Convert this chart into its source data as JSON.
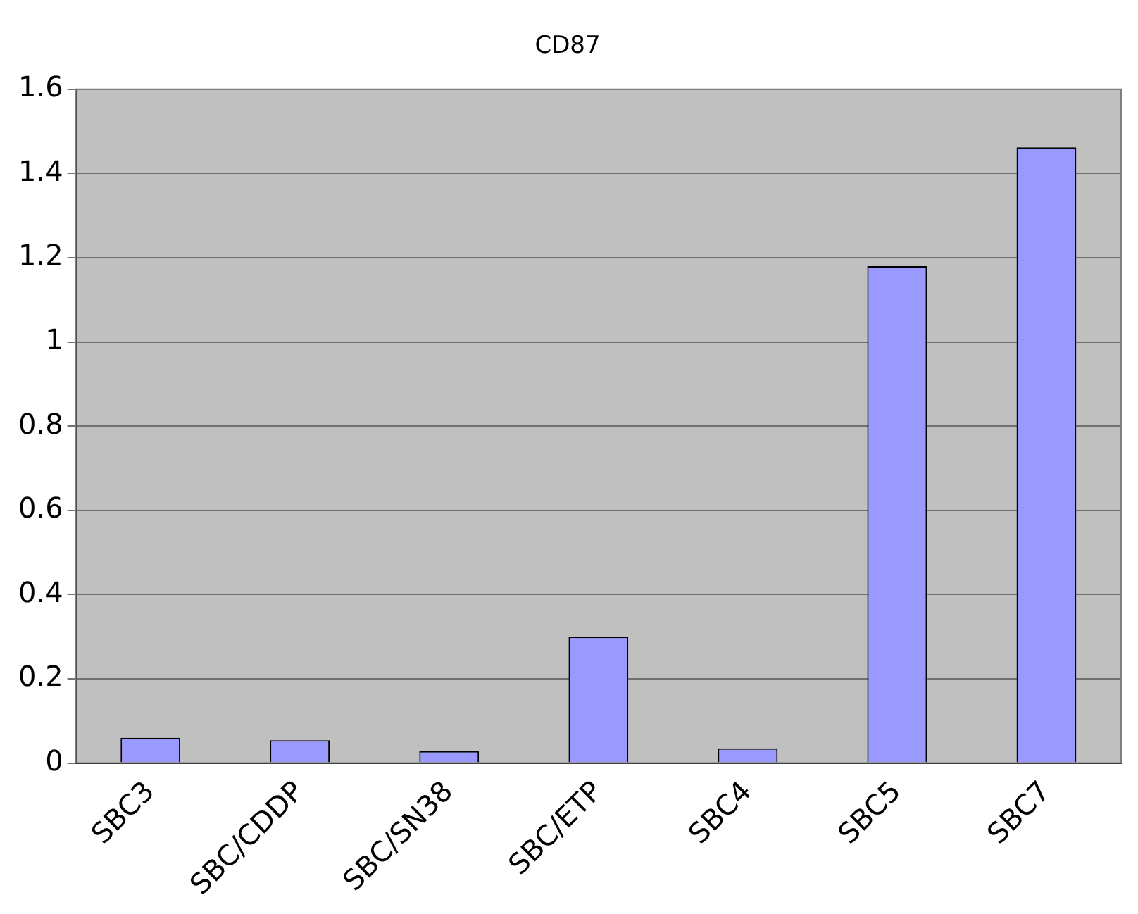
{
  "chart_data": {
    "type": "bar",
    "title": "CD87",
    "categories": [
      "SBC3",
      "SBC/CDDP",
      "SBC/SN38",
      "SBC/ETP",
      "SBC4",
      "SBC5",
      "SBC7"
    ],
    "values": [
      0.06,
      0.054,
      0.028,
      0.3,
      0.035,
      1.18,
      1.462
    ],
    "color": "#9999ff",
    "ylim": [
      0,
      1.6
    ],
    "yticks": [
      0,
      0.2,
      0.4,
      0.6,
      0.8,
      1,
      1.2,
      1.4,
      1.6
    ],
    "grid": "y",
    "legend": false
  }
}
